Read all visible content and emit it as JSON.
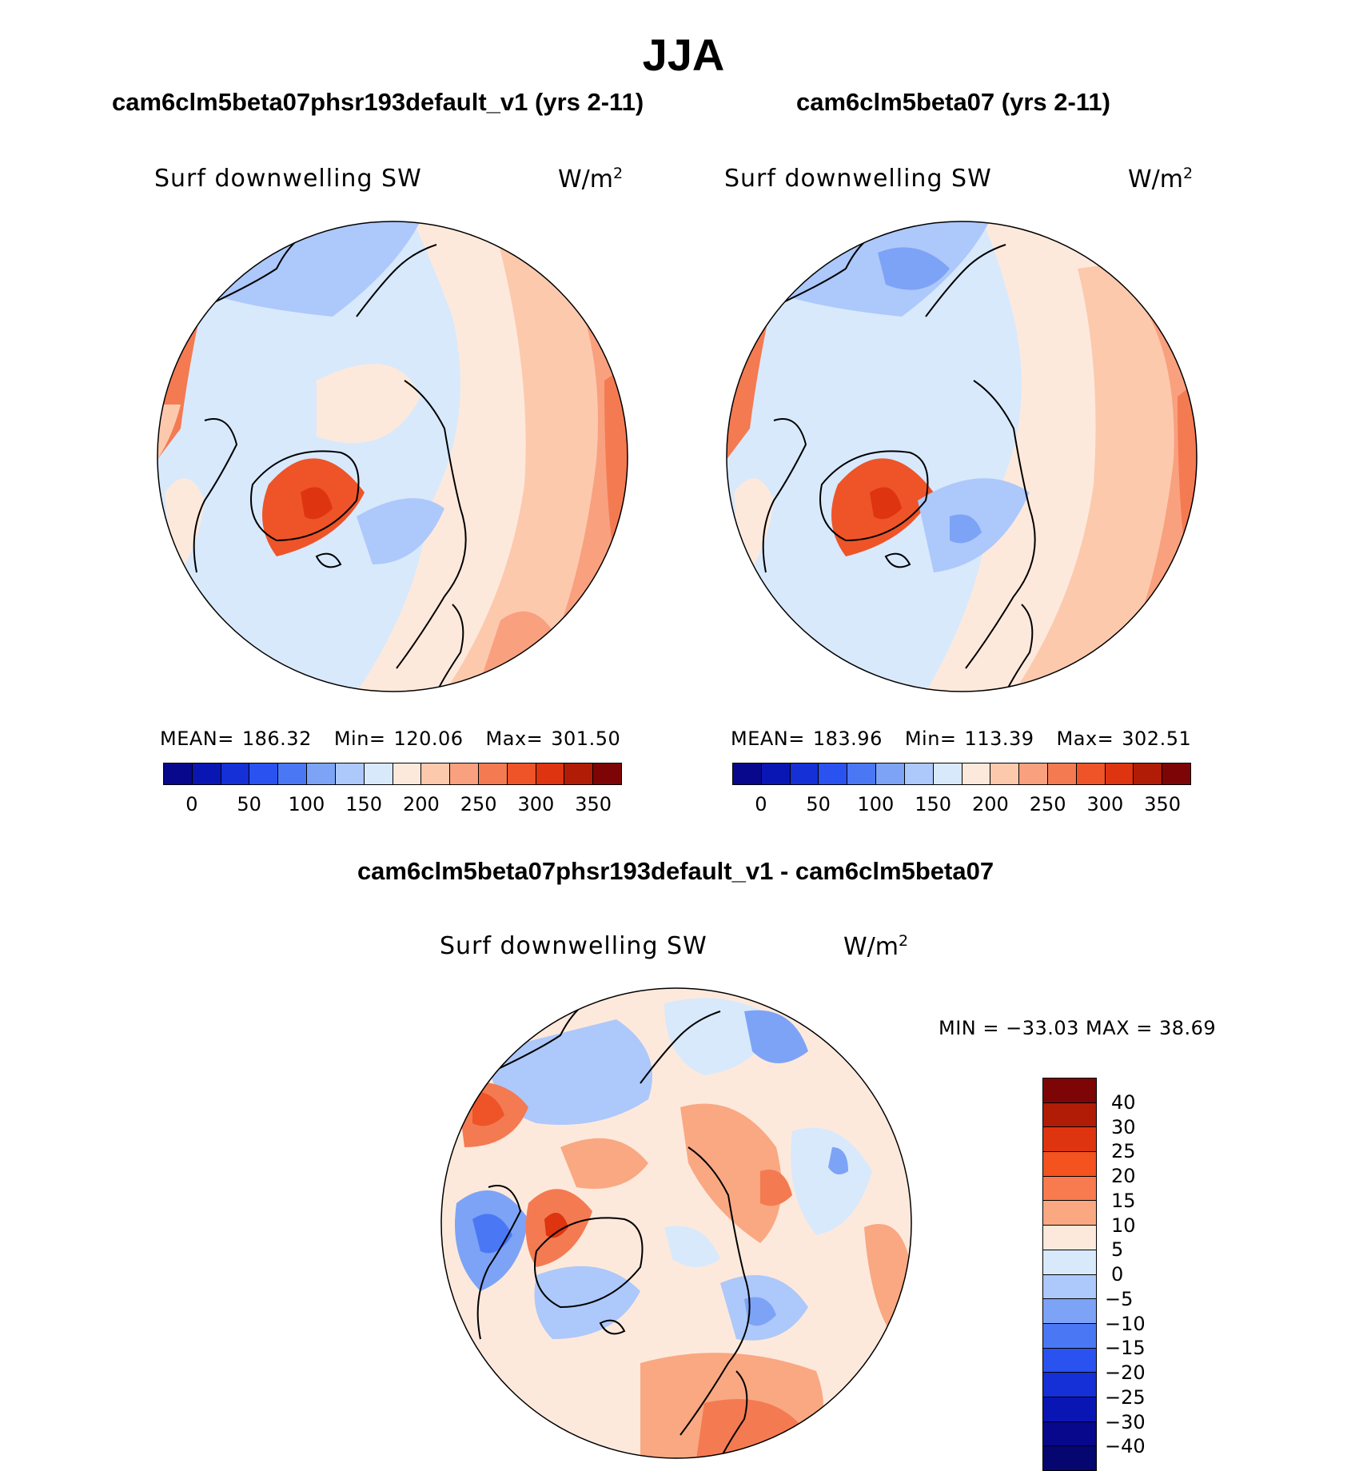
{
  "title": "JJA",
  "panels": [
    {
      "title": "cam6clm5beta07phsr193default_v1 (yrs 2-11)",
      "variable": "Surf downwelling SW",
      "units_base": "W/m",
      "units_exp": "2",
      "mean_label": "MEAN=",
      "mean": "186.32",
      "min_label": "Min=",
      "min": "120.06",
      "max_label": "Max=",
      "max": "301.50"
    },
    {
      "title": "cam6clm5beta07 (yrs 2-11)",
      "variable": "Surf downwelling SW",
      "units_base": "W/m",
      "units_exp": "2",
      "mean_label": "MEAN=",
      "mean": "183.96",
      "min_label": "Min=",
      "min": "113.39",
      "max_label": "Max=",
      "max": "302.51"
    }
  ],
  "abs_colorbar": {
    "colors": [
      "#08088c",
      "#0a16b4",
      "#1430d6",
      "#2a52f0",
      "#4a78f4",
      "#7da3f7",
      "#adc8fa",
      "#d8e9fc",
      "#fde9dc",
      "#fcc9ad",
      "#f9a07f",
      "#f47a52",
      "#ee5428",
      "#de3410",
      "#b01c06",
      "#7e0505"
    ],
    "ticks": [
      "0",
      "50",
      "100",
      "150",
      "200",
      "250",
      "300",
      "350"
    ]
  },
  "diff": {
    "title": "cam6clm5beta07phsr193default_v1 - cam6clm5beta07",
    "variable": "Surf downwelling SW",
    "units_base": "W/m",
    "units_exp": "2",
    "minmax": "MIN = −33.03 MAX =  38.69",
    "colorbar": {
      "colors": [
        "#7e0505",
        "#b01c06",
        "#de3410",
        "#f4521f",
        "#f77b4e",
        "#f9a882",
        "#fde9dc",
        "#d8e9fc",
        "#adc8fa",
        "#7da3f7",
        "#4a78f4",
        "#2a52f0",
        "#1430d6",
        "#0a16b4",
        "#08088c"
      ],
      "ticks": [
        "40",
        "30",
        "25",
        "20",
        "15",
        "10",
        "5",
        "0",
        "−5",
        "−10",
        "−15",
        "−20",
        "−25",
        "−30",
        "−40"
      ]
    }
  }
}
